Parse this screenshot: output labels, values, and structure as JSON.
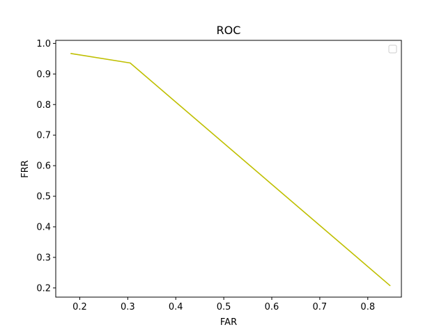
{
  "chart_data": {
    "type": "line",
    "title": "ROC",
    "xlabel": "FAR",
    "ylabel": "FRR",
    "xlim": [
      0.15,
      0.87
    ],
    "ylim": [
      0.17,
      1.01
    ],
    "xticks": [
      0.2,
      0.3,
      0.4,
      0.5,
      0.6,
      0.7,
      0.8
    ],
    "xtick_labels": [
      "0.2",
      "0.3",
      "0.4",
      "0.5",
      "0.6",
      "0.7",
      "0.8"
    ],
    "yticks": [
      0.2,
      0.3,
      0.4,
      0.5,
      0.6,
      0.7,
      0.8,
      0.9,
      1.0
    ],
    "ytick_labels": [
      "0.2",
      "0.3",
      "0.4",
      "0.5",
      "0.6",
      "0.7",
      "0.8",
      "0.9",
      "1.0"
    ],
    "grid": false,
    "legend": "upper-right (empty)",
    "series": [
      {
        "color": "#bfbf00",
        "x": [
          0.182,
          0.305,
          0.846
        ],
        "y": [
          0.967,
          0.936,
          0.208
        ]
      }
    ]
  }
}
